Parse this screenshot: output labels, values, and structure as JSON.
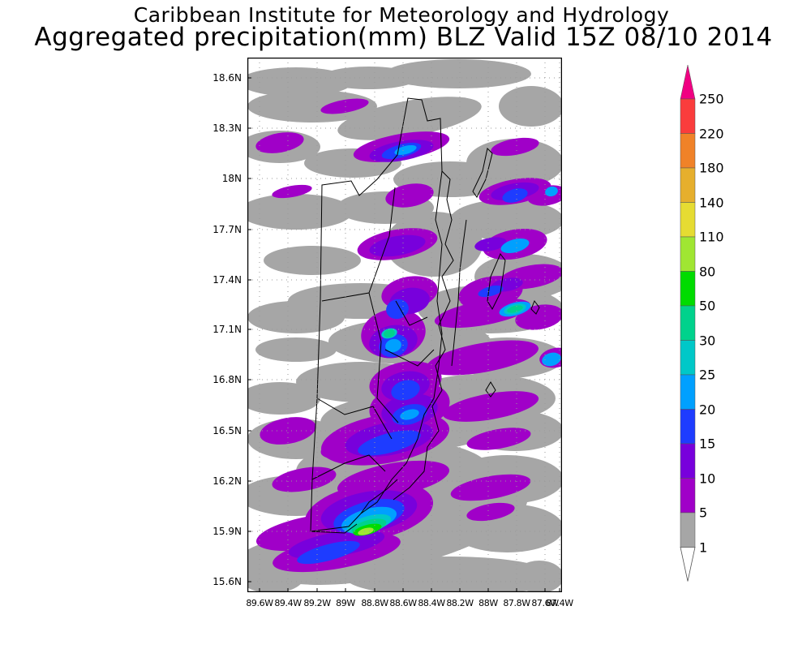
{
  "header": {
    "title": "Caribbean Institute for Meteorology and Hydrology",
    "subtitle": "Aggregated precipitation(mm) BLZ Valid 15Z 08/10 2014"
  },
  "map": {
    "lat_labels": [
      "18.6N",
      "18.3N",
      "18N",
      "17.7N",
      "17.4N",
      "17.1N",
      "16.8N",
      "16.5N",
      "16.2N",
      "15.9N",
      "15.6N"
    ],
    "lon_labels": [
      "89.6W",
      "89.4W",
      "89.2W",
      "89W",
      "88.8W",
      "88.6W",
      "88.4W",
      "88.2W",
      "88W",
      "87.8W",
      "87.6W",
      "87.4W"
    ],
    "lat_range": [
      15.55,
      18.7
    ],
    "lon_range": [
      89.7,
      87.4
    ]
  },
  "legend": {
    "levels": [
      "1",
      "5",
      "10",
      "15",
      "20",
      "25",
      "30",
      "50",
      "80",
      "110",
      "140",
      "180",
      "220",
      "250"
    ],
    "colors": [
      "#ffffff",
      "#a6a6a6",
      "#a000c8",
      "#7800dc",
      "#1e3cff",
      "#00a0ff",
      "#00c8c8",
      "#00d28c",
      "#00dc00",
      "#a0e632",
      "#e6dc32",
      "#e6af2d",
      "#f08228",
      "#fa3c3c",
      "#f00082"
    ]
  },
  "colors": {
    "axis": "#000000",
    "grid": "#9a9a9a",
    "coast": "#000000"
  }
}
